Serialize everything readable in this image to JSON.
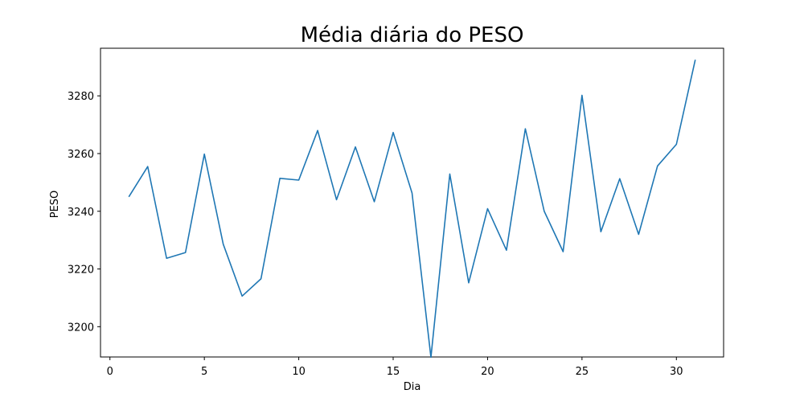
{
  "chart_data": {
    "type": "line",
    "title": "Média diária do PESO",
    "xlabel": "Dia",
    "ylabel": "PESO",
    "xlim": [
      -0.5,
      32.5
    ],
    "ylim": [
      3189.5,
      3296.5
    ],
    "xticks": [
      0,
      5,
      10,
      15,
      20,
      25,
      30
    ],
    "yticks": [
      3200,
      3220,
      3240,
      3260,
      3280
    ],
    "grid": false,
    "colors": {
      "line": "#1f77b4"
    },
    "x": [
      1,
      2,
      3,
      4,
      5,
      6,
      7,
      8,
      9,
      10,
      11,
      12,
      13,
      14,
      15,
      16,
      17,
      18,
      19,
      20,
      21,
      22,
      23,
      24,
      25,
      26,
      27,
      28,
      29,
      30,
      31
    ],
    "values": [
      3245,
      3255.5,
      3223.7,
      3225.7,
      3259.8,
      3228.6,
      3210.6,
      3216.6,
      3251.4,
      3250.8,
      3268,
      3244,
      3262.3,
      3243.3,
      3267.3,
      3246.3,
      3189.4,
      3252.9,
      3215.2,
      3240.9,
      3226.5,
      3268.6,
      3240,
      3226,
      3280.2,
      3232.9,
      3251.3,
      3232,
      3255.7,
      3263.2,
      3292.5
    ]
  }
}
